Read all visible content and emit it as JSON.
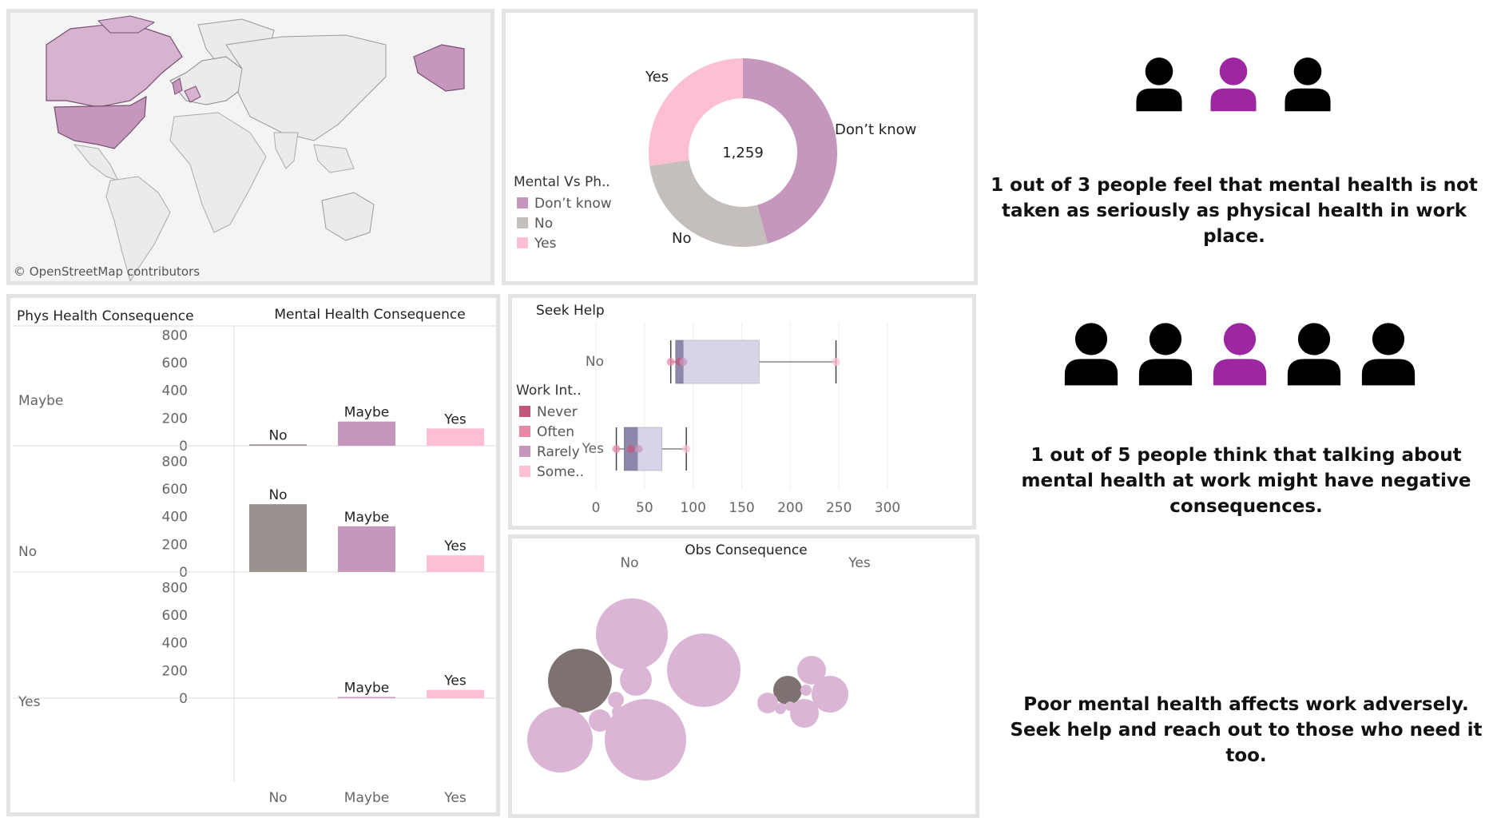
{
  "map": {
    "attribution": "© OpenStreetMap contributors"
  },
  "chart_data": [
    {
      "type": "pie",
      "title": "",
      "legend_title": "Mental Vs Ph..",
      "legend_placement": "left",
      "center_label": "1,259",
      "categories": [
        "Don't know",
        "No",
        "Yes"
      ],
      "values": [
        576,
        340,
        343
      ],
      "colors": [
        "#c597bd",
        "#c4bfbd",
        "#ffbfd2"
      ],
      "slice_labels": [
        "Don’t know",
        "No",
        "Yes"
      ]
    },
    {
      "type": "bar",
      "row_header": "Phys Health Consequence",
      "col_header": "Mental Health Consequence",
      "rows": [
        "Maybe",
        "No",
        "Yes"
      ],
      "categories": [
        "No",
        "Maybe",
        "Yes"
      ],
      "series": [
        {
          "row": "Maybe",
          "values": [
            10,
            175,
            125
          ]
        },
        {
          "row": "No",
          "values": [
            490,
            330,
            120
          ]
        },
        {
          "row": "Yes",
          "values": [
            0,
            5,
            60
          ]
        }
      ],
      "colors": {
        "No": "#9b918e",
        "Maybe": "#c597bd",
        "Yes": "#ffbfd2"
      },
      "yticks": [
        0,
        200,
        400,
        600,
        800
      ],
      "ylim": [
        0,
        820
      ]
    },
    {
      "type": "scatter",
      "subtype": "box",
      "title": "Seek Help",
      "legend_title": "Work Int..",
      "legend": [
        {
          "name": "Never",
          "color": "#c0577a"
        },
        {
          "name": "Often",
          "color": "#e88aa6"
        },
        {
          "name": "Rarely",
          "color": "#c597bd"
        },
        {
          "name": "Some..",
          "color": "#ffbfd2"
        }
      ],
      "categories": [
        "No",
        "Yes"
      ],
      "boxes": [
        {
          "category": "No",
          "min": 77,
          "q1": 82,
          "median": 90,
          "q3": 168,
          "max": 247,
          "points": [
            {
              "x": 77,
              "series": "Often"
            },
            {
              "x": 86,
              "series": "Never"
            },
            {
              "x": 90,
              "series": "Rarely"
            },
            {
              "x": 247,
              "series": "Some.."
            }
          ]
        },
        {
          "category": "Yes",
          "min": 21,
          "q1": 29,
          "median": 43,
          "q3": 68,
          "max": 93,
          "points": [
            {
              "x": 21,
              "series": "Often"
            },
            {
              "x": 36,
              "series": "Never"
            },
            {
              "x": 44,
              "series": "Rarely"
            },
            {
              "x": 93,
              "series": "Some.."
            }
          ]
        }
      ],
      "xticks": [
        0,
        50,
        100,
        150,
        200,
        250,
        300
      ],
      "xlim": [
        0,
        300
      ]
    },
    {
      "type": "scatter",
      "subtype": "packed-bubble",
      "title": "Obs Consequence",
      "groups": [
        {
          "name": "No",
          "bubbles": [
            {
              "x": 150,
              "y": 120,
              "r": 45,
              "color": "#dbb5d5"
            },
            {
              "x": 240,
              "y": 165,
              "r": 46,
              "color": "#dbb5d5"
            },
            {
              "x": 85,
              "y": 178,
              "r": 40,
              "color": "#7d7270"
            },
            {
              "x": 155,
              "y": 177,
              "r": 20,
              "color": "#dbb5d5"
            },
            {
              "x": 130,
              "y": 202,
              "r": 10,
              "color": "#dbb5d5"
            },
            {
              "x": 133,
              "y": 217,
              "r": 8,
              "color": "#dbb5d5"
            },
            {
              "x": 110,
              "y": 228,
              "r": 14,
              "color": "#dbb5d5"
            },
            {
              "x": 60,
              "y": 252,
              "r": 41,
              "color": "#dbb5d5"
            },
            {
              "x": 167,
              "y": 252,
              "r": 51,
              "color": "#dbb5d5"
            }
          ]
        },
        {
          "name": "Yes",
          "bubbles": [
            {
              "x": 375,
              "y": 165,
              "r": 18,
              "color": "#dbb5d5"
            },
            {
              "x": 345,
              "y": 190,
              "r": 18,
              "color": "#7d7270"
            },
            {
              "x": 368,
              "y": 190,
              "r": 7,
              "color": "#dbb5d5"
            },
            {
              "x": 398,
              "y": 195,
              "r": 23,
              "color": "#dbb5d5"
            },
            {
              "x": 348,
              "y": 210,
              "r": 6,
              "color": "#dbb5d5"
            },
            {
              "x": 320,
              "y": 206,
              "r": 13,
              "color": "#dbb5d5"
            },
            {
              "x": 336,
              "y": 213,
              "r": 7,
              "color": "#dbb5d5"
            },
            {
              "x": 366,
              "y": 219,
              "r": 18,
              "color": "#dbb5d5"
            }
          ]
        }
      ]
    }
  ],
  "infographics": [
    {
      "text": "1 out of 3 people feel that mental health is not taken as seriously as physical health in work place.",
      "people": [
        "#000000",
        "#9c27a0",
        "#000000"
      ]
    },
    {
      "text": "1 out of 5 people think that talking about mental health at work might have negative consequences.",
      "people": [
        "#000000",
        "#000000",
        "#9c27a0",
        "#000000",
        "#000000"
      ]
    },
    {
      "text": "Poor mental health affects work adversely. Seek help and reach out to those who need it too.",
      "people": []
    }
  ]
}
